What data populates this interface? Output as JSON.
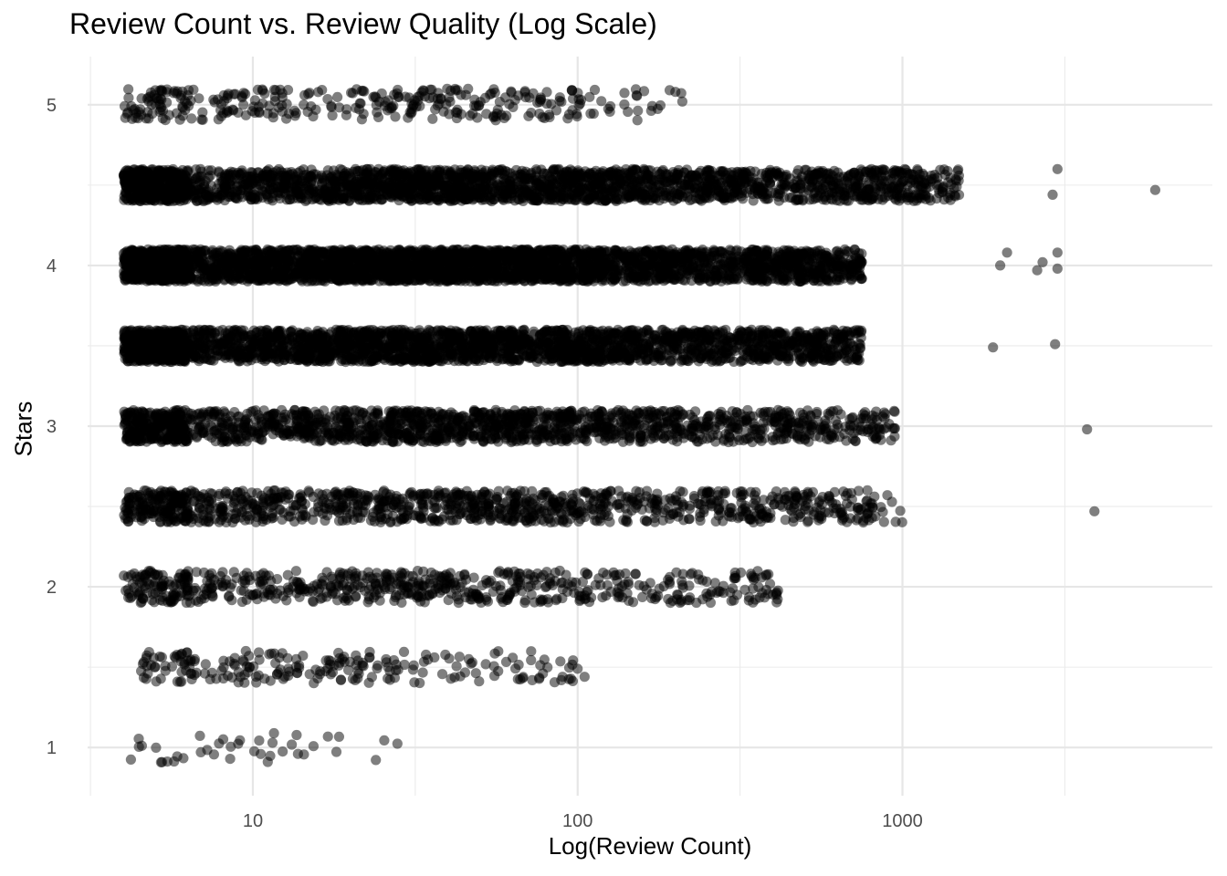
{
  "chart_data": {
    "type": "scatter",
    "title": "Review Count vs. Review Quality (Log Scale)",
    "xlabel": "Log(Review Count)",
    "ylabel": "Stars",
    "x_scale": "log10",
    "x_range": [
      3.1,
      9000
    ],
    "x_ticks": [
      10,
      100,
      1000
    ],
    "x_tick_labels": [
      "10",
      "100",
      "1000"
    ],
    "y_range": [
      0.7,
      5.3
    ],
    "y_ticks": [
      1,
      2,
      3,
      4,
      5
    ],
    "y_tick_labels": [
      "1",
      "2",
      "3",
      "4",
      "5"
    ],
    "grid": true,
    "point_color": "#000000",
    "point_opacity": 0.5,
    "jitter": {
      "y": 0.1
    },
    "point_summary": [
      {
        "stars": 1.0,
        "approx_count": 40,
        "x_min": 4,
        "x_max": 30
      },
      {
        "stars": 1.5,
        "approx_count": 220,
        "x_min": 4.5,
        "x_max": 105
      },
      {
        "stars": 2.0,
        "approx_count": 650,
        "x_min": 4,
        "x_max": 420
      },
      {
        "stars": 2.5,
        "approx_count": 1150,
        "x_min": 4,
        "x_max": 4000
      },
      {
        "stars": 3.0,
        "approx_count": 1700,
        "x_min": 4,
        "x_max": 3800
      },
      {
        "stars": 3.5,
        "approx_count": 2800,
        "x_min": 4,
        "x_max": 3000
      },
      {
        "stars": 4.0,
        "approx_count": 3600,
        "x_min": 4,
        "x_max": 3000
      },
      {
        "stars": 4.5,
        "approx_count": 2600,
        "x_min": 4,
        "x_max": 6000
      },
      {
        "stars": 5.0,
        "approx_count": 330,
        "x_min": 4,
        "x_max": 210
      }
    ],
    "outliers": [
      {
        "x": 6000,
        "y": 4.47
      },
      {
        "x": 3000,
        "y": 4.6
      },
      {
        "x": 2900,
        "y": 4.44
      },
      {
        "x": 3000,
        "y": 4.08
      },
      {
        "x": 3000,
        "y": 3.98
      },
      {
        "x": 2600,
        "y": 3.97
      },
      {
        "x": 2700,
        "y": 4.02
      },
      {
        "x": 2000,
        "y": 4.0
      },
      {
        "x": 2100,
        "y": 4.08
      },
      {
        "x": 2950,
        "y": 3.51
      },
      {
        "x": 1900,
        "y": 3.49
      },
      {
        "x": 3700,
        "y": 2.98
      },
      {
        "x": 3900,
        "y": 2.47
      },
      {
        "x": 780,
        "y": 2.6
      },
      {
        "x": 780,
        "y": 2.98
      },
      {
        "x": 410,
        "y": 1.95
      },
      {
        "x": 300,
        "y": 1.99
      },
      {
        "x": 310,
        "y": 1.95
      },
      {
        "x": 200,
        "y": 5.08
      },
      {
        "x": 210,
        "y": 5.02
      },
      {
        "x": 105,
        "y": 1.44
      },
      {
        "x": 100,
        "y": 1.49
      }
    ]
  }
}
